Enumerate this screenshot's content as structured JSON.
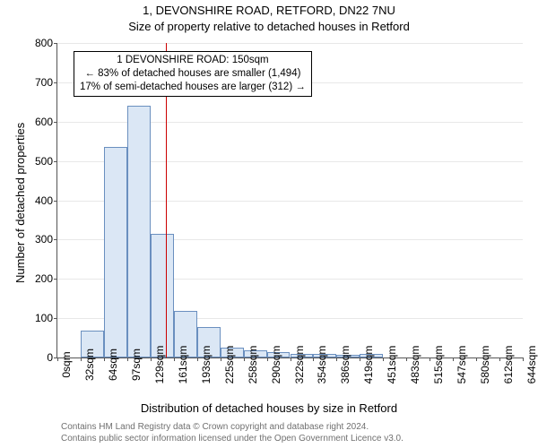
{
  "header": {
    "title": "1, DEVONSHIRE ROAD, RETFORD, DN22 7NU",
    "subtitle": "Size of property relative to detached houses in Retford"
  },
  "axes": {
    "ylabel": "Number of detached properties",
    "xlabel": "Distribution of detached houses by size in Retford",
    "ylim": [
      0,
      800
    ],
    "ytick_step": 100,
    "x_ticks": [
      "0sqm",
      "32sqm",
      "64sqm",
      "97sqm",
      "129sqm",
      "161sqm",
      "193sqm",
      "225sqm",
      "258sqm",
      "290sqm",
      "322sqm",
      "354sqm",
      "386sqm",
      "419sqm",
      "451sqm",
      "483sqm",
      "515sqm",
      "547sqm",
      "580sqm",
      "612sqm",
      "644sqm"
    ]
  },
  "chart": {
    "type": "histogram",
    "bar_color": "#dbe7f5",
    "bar_border_color": "#6a8fbf",
    "grid_color": "#e8e8e8",
    "background_color": "#ffffff",
    "axis_color": "#555555",
    "vline_color": "#cc0000",
    "vline_at_sqm": 150,
    "xmax_sqm": 644,
    "values": [
      0,
      68,
      535,
      640,
      315,
      118,
      78,
      25,
      18,
      14,
      10,
      9,
      8,
      9,
      0,
      0,
      0,
      0,
      0,
      0
    ]
  },
  "annotation": {
    "line1": "1 DEVONSHIRE ROAD: 150sqm",
    "line2": "← 83% of detached houses are smaller (1,494)",
    "line3": "17% of semi-detached houses are larger (312) →"
  },
  "footer": {
    "line1": "Contains HM Land Registry data © Crown copyright and database right 2024.",
    "line2": "Contains public sector information licensed under the Open Government Licence v3.0."
  },
  "style": {
    "title_fontsize": 13,
    "subtitle_fontsize": 13,
    "axis_label_fontsize": 13,
    "tick_fontsize": 12,
    "annotation_fontsize": 11.5,
    "footer_fontsize": 10,
    "footer_color": "#707070"
  }
}
